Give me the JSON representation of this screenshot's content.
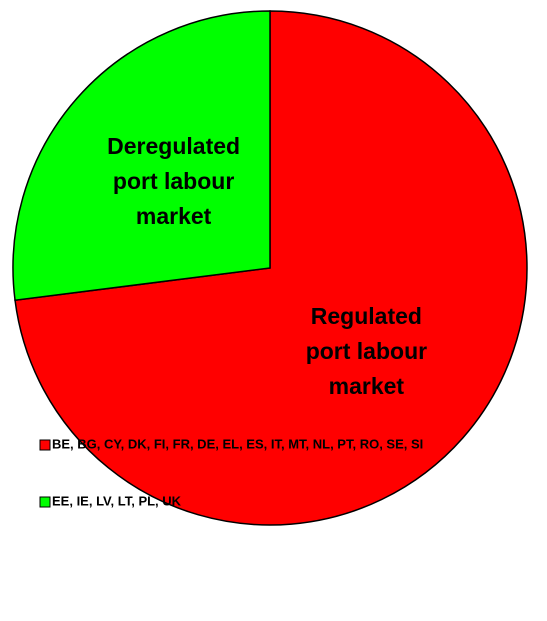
{
  "chart_data": {
    "type": "pie",
    "categories": [
      "BE, BG, CY, DK, FI, FR, DE, EL, ES, IT, MT, NL, PT, RO, SE, SI",
      "EE, IE, LV, LT, PL, UK"
    ],
    "values": [
      73,
      27
    ],
    "colors": [
      "#ff0000",
      "#00ff00"
    ],
    "slice_labels": [
      [
        "Regulated",
        "port labour",
        "market"
      ],
      [
        "Deregulated",
        "port labour",
        "market"
      ]
    ]
  }
}
